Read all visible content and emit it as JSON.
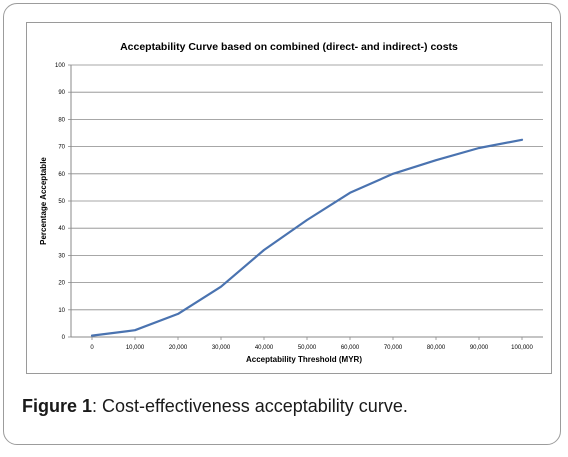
{
  "chart_data": {
    "type": "line",
    "title": "Acceptability Curve based on combined (direct- and indirect-) costs",
    "xlabel": "Acceptability Threshold (MYR)",
    "ylabel": "Percentage Acceptable",
    "x": [
      0,
      10000,
      20000,
      30000,
      40000,
      50000,
      60000,
      70000,
      80000,
      90000,
      100000
    ],
    "x_tick_labels": [
      "0",
      "10,000",
      "20,000",
      "30,000",
      "40,000",
      "50,000",
      "60,000",
      "70,000",
      "80,000",
      "90,000",
      "100,000"
    ],
    "y_ticks": [
      0,
      10,
      20,
      30,
      40,
      50,
      60,
      70,
      80,
      90,
      100
    ],
    "ylim": [
      0,
      100
    ],
    "grid": "horizontal",
    "series": [
      {
        "values": [
          0.5,
          2.5,
          8.5,
          18.5,
          32,
          43,
          53,
          60,
          65,
          69.5,
          72.5
        ],
        "color": "#4a73b0"
      }
    ]
  },
  "caption": {
    "label": "Figure 1",
    "text": ": Cost-effectiveness acceptability curve."
  }
}
